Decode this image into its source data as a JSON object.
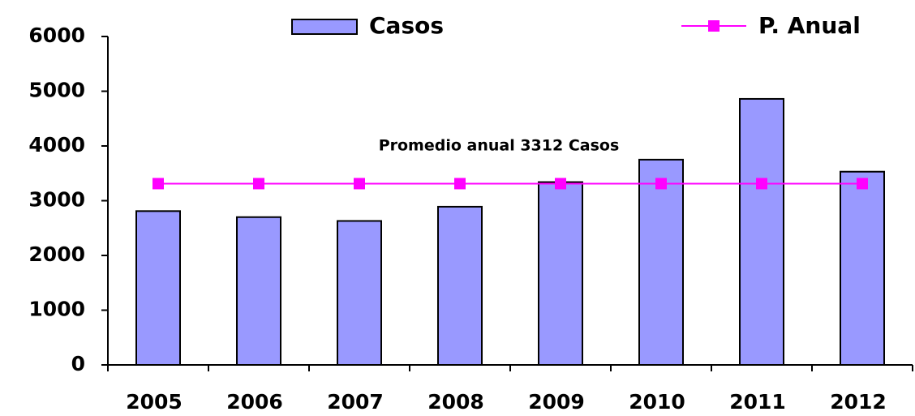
{
  "chart_data": {
    "type": "bar",
    "categories": [
      "2005",
      "2006",
      "2007",
      "2008",
      "2009",
      "2010",
      "2011",
      "2012"
    ],
    "series": [
      {
        "name": "Casos",
        "type": "bar",
        "color": "#9999ff",
        "values": [
          2810,
          2700,
          2630,
          2890,
          3340,
          3750,
          4860,
          3530
        ]
      },
      {
        "name": "P. Anual",
        "type": "line",
        "color": "#ff00ff",
        "values": [
          3312,
          3312,
          3312,
          3312,
          3312,
          3312,
          3312,
          3312
        ]
      }
    ],
    "annotation": "Promedio anual 3312 Casos",
    "ylim": [
      0,
      6000
    ],
    "yticks": [
      0,
      1000,
      2000,
      3000,
      4000,
      5000,
      6000
    ],
    "grid": false
  }
}
